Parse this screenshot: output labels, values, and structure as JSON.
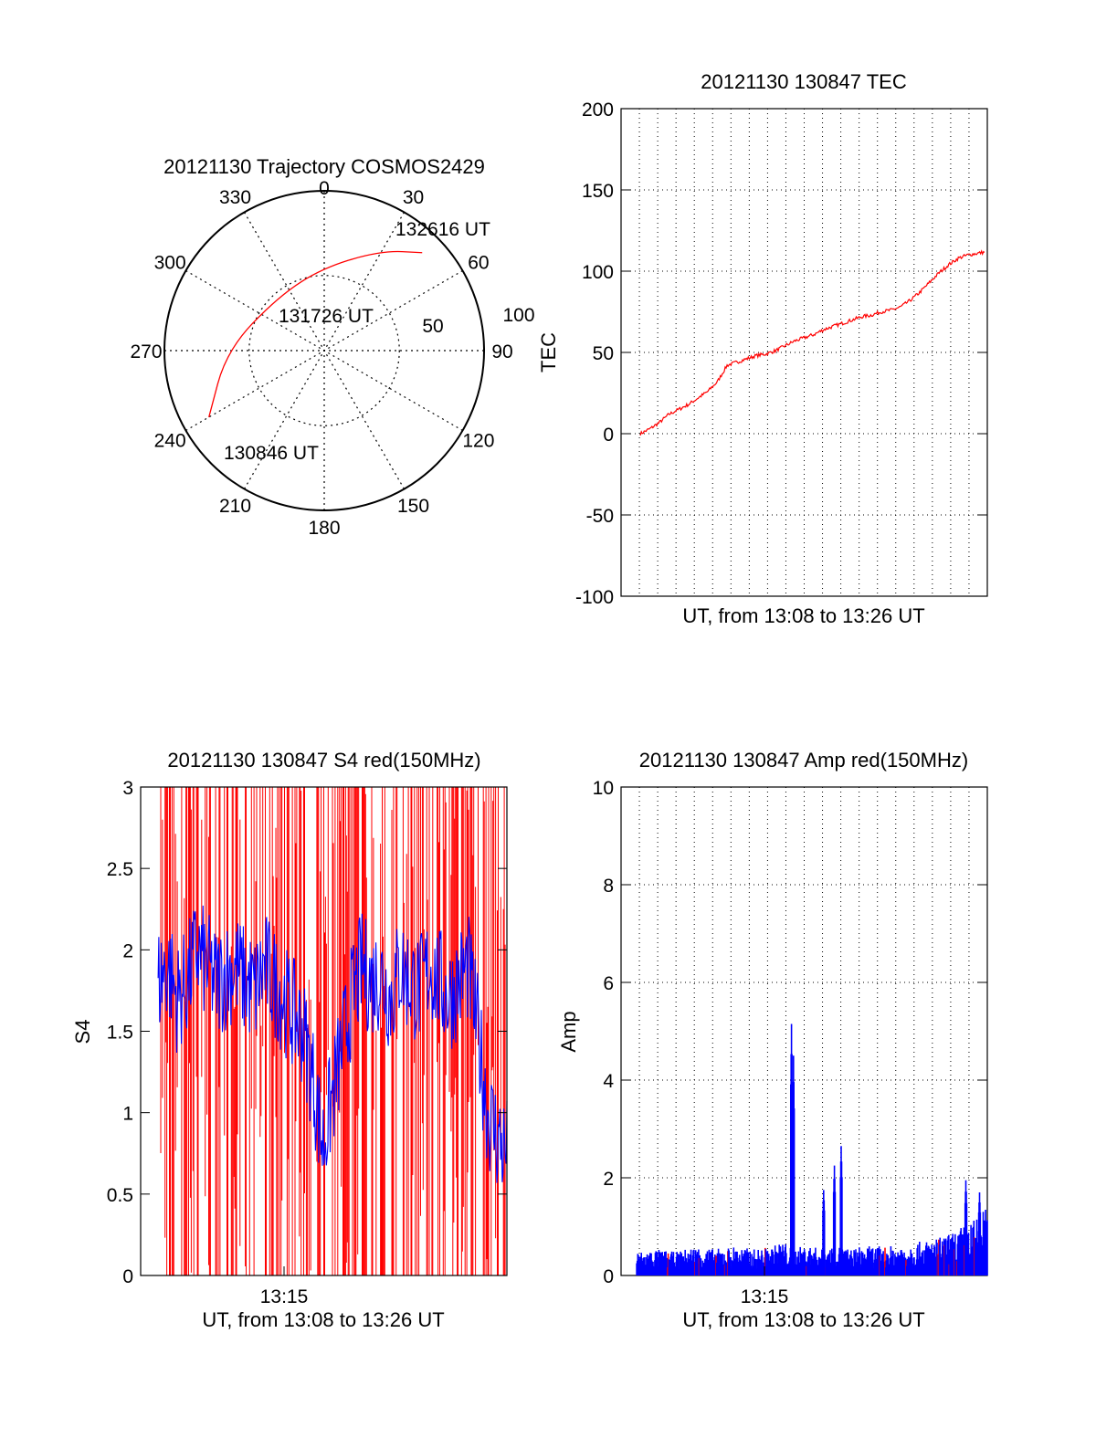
{
  "chart_data": [
    {
      "type": "polar",
      "title": "20121130 Trajectory COSMOS2429",
      "azimuth_labels": [
        "0",
        "30",
        "60",
        "90",
        "120",
        "150",
        "180",
        "210",
        "240",
        "270",
        "300",
        "330"
      ],
      "ring_labels": [
        "50",
        "100"
      ],
      "track_color": "#ff0000",
      "track": [
        {
          "az": 240,
          "el": 15,
          "label": "130846 UT"
        },
        {
          "az": 270,
          "el": 35
        },
        {
          "az": 320,
          "el": 50,
          "label": "131726 UT"
        },
        {
          "az": 0,
          "el": 43
        },
        {
          "az": 30,
          "el": 25
        },
        {
          "az": 45,
          "el": 12,
          "label": "132616 UT"
        }
      ]
    },
    {
      "type": "line",
      "title": "20121130 130847 TEC",
      "xlabel": "UT, from 13:08 to 13:26 UT",
      "ylabel": "TEC",
      "ylim": [
        -100,
        200
      ],
      "yticks": [
        "-100",
        "-50",
        "0",
        "50",
        "100",
        "150",
        "200"
      ],
      "grid": true,
      "color": "#ff0000",
      "x": [
        0,
        0.5,
        1,
        1.5,
        2,
        2.5,
        3,
        3.5,
        4,
        4.5,
        5,
        5.5,
        6,
        6.5,
        7,
        7.5,
        8,
        8.5,
        9,
        9.5,
        10,
        10.5,
        11,
        11.5,
        12,
        12.5,
        13,
        13.5,
        14,
        14.5,
        15,
        15.5,
        16,
        16.5,
        17,
        17.5,
        18
      ],
      "values": [
        0,
        3,
        7,
        12,
        15,
        18,
        22,
        26,
        32,
        42,
        44,
        46,
        48,
        49,
        51,
        54,
        57,
        59,
        61,
        64,
        66,
        68,
        70,
        72,
        73,
        75,
        76,
        78,
        82,
        87,
        93,
        99,
        104,
        108,
        110,
        111,
        112
      ]
    },
    {
      "type": "line",
      "title": "20121130 130847 S4 red(150MHz)",
      "xlabel": "UT, from 13:08 to 13:26 UT",
      "ylabel": "S4",
      "ylim": [
        0,
        3
      ],
      "yticks": [
        "0",
        "0.5",
        "1",
        "1.5",
        "2",
        "2.5",
        "3"
      ],
      "xtick_label": "13:15",
      "series": [
        {
          "color": "#ff0000"
        },
        {
          "color": "#0000ff"
        }
      ],
      "x": [
        0,
        0.5,
        1,
        1.5,
        2,
        2.5,
        3,
        3.5,
        4,
        4.5,
        5,
        5.5,
        6,
        6.5,
        7,
        7.5,
        8,
        8.5,
        9,
        9.5,
        10,
        10.5,
        11,
        11.5,
        12,
        12.5,
        13,
        13.5,
        14,
        14.5,
        15,
        15.5,
        16,
        16.5,
        17,
        17.5,
        18
      ],
      "blue_values": [
        1.8,
        1.9,
        1.7,
        1.8,
        2.0,
        1.9,
        1.8,
        1.85,
        1.9,
        1.8,
        1.75,
        1.9,
        1.8,
        1.7,
        1.6,
        1.5,
        1.2,
        0.8,
        1.1,
        1.4,
        1.7,
        1.9,
        1.8,
        1.85,
        1.7,
        1.9,
        1.8,
        1.75,
        1.9,
        1.8,
        1.7,
        1.8,
        1.9,
        1.5,
        1.0,
        0.85,
        0.75
      ]
    },
    {
      "type": "line",
      "title": "20121130 130847 Amp red(150MHz)",
      "xlabel": "UT, from 13:08 to 13:26 UT",
      "ylabel": "Amp",
      "ylim": [
        0,
        10
      ],
      "yticks": [
        "0",
        "2",
        "4",
        "6",
        "8",
        "10"
      ],
      "xtick_label": "13:15",
      "grid": true,
      "series": [
        {
          "color": "#ff0000"
        },
        {
          "color": "#0000ff"
        }
      ],
      "x": [
        0,
        1,
        2,
        3,
        4,
        5,
        6,
        7,
        7.5,
        8,
        8.5,
        9,
        9.5,
        10,
        10.5,
        11,
        11.5,
        12,
        13,
        14,
        15,
        16,
        17,
        17.5,
        18
      ],
      "blue_values": [
        0.4,
        0.45,
        0.4,
        0.5,
        0.45,
        0.5,
        0.45,
        0.5,
        0.6,
        0.45,
        0.5,
        0.5,
        0.45,
        0.5,
        0.5,
        0.45,
        0.5,
        0.5,
        0.5,
        0.55,
        0.6,
        0.7,
        0.9,
        1.0,
        1.2
      ],
      "spikes": [
        {
          "x": 7.95,
          "value": 5.15
        },
        {
          "x": 8.05,
          "value": 4.5
        },
        {
          "x": 9.6,
          "value": 1.75
        },
        {
          "x": 10.15,
          "value": 2.25
        },
        {
          "x": 10.5,
          "value": 2.65
        },
        {
          "x": 16.9,
          "value": 1.95
        },
        {
          "x": 17.6,
          "value": 1.7
        }
      ]
    }
  ]
}
